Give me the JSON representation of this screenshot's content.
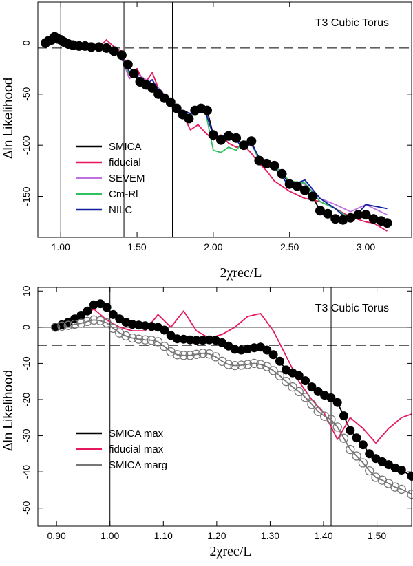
{
  "chart_data": [
    {
      "type": "line",
      "title": "T3 Cubic Torus",
      "xlabel": "2χrec/L",
      "ylabel": "Δln Likelihood",
      "xlim": [
        0.85,
        3.3
      ],
      "ylim": [
        -190,
        40
      ],
      "xticks": [
        "1.00",
        "1.50",
        "2.00",
        "2.50",
        "3.00"
      ],
      "yticks": [
        "0",
        "-50",
        "-100",
        "-150"
      ],
      "hlines": [
        0,
        -5
      ],
      "vlines": [
        1.0,
        1.4142,
        1.7321
      ],
      "legend_position": "left-middle",
      "series": [
        {
          "name": "SMICA",
          "color": "#000000",
          "markers": true,
          "x": [
            0.9,
            0.92,
            0.94,
            0.96,
            0.98,
            1.0,
            1.02,
            1.05,
            1.08,
            1.12,
            1.16,
            1.2,
            1.25,
            1.3,
            1.35,
            1.4,
            1.44,
            1.48,
            1.52,
            1.56,
            1.6,
            1.64,
            1.68,
            1.72,
            1.76,
            1.8,
            1.84,
            1.88,
            1.92,
            1.96,
            2.0,
            2.05,
            2.1,
            2.15,
            2.2,
            2.25,
            2.3,
            2.35,
            2.4,
            2.45,
            2.5,
            2.55,
            2.6,
            2.65,
            2.7,
            2.75,
            2.8,
            2.85,
            2.9,
            2.95,
            3.0,
            3.05,
            3.1,
            3.14
          ],
          "y": [
            0,
            2,
            3,
            6,
            4,
            3,
            1,
            -1,
            -2,
            -3,
            -3,
            -4,
            -4,
            -5,
            -8,
            -12,
            -21,
            -30,
            -38,
            -41,
            -44,
            -50,
            -54,
            -58,
            -64,
            -70,
            -74,
            -66,
            -64,
            -66,
            -90,
            -95,
            -91,
            -93,
            -100,
            -96,
            -115,
            -118,
            -120,
            -128,
            -138,
            -140,
            -144,
            -150,
            -164,
            -167,
            -172,
            -173,
            -171,
            -168,
            -168,
            -172,
            -174,
            -176
          ]
        },
        {
          "name": "fiducial",
          "color": "#e8185e",
          "markers": false,
          "x": [
            0.9,
            0.94,
            0.97,
            1.0,
            1.05,
            1.1,
            1.15,
            1.2,
            1.25,
            1.3,
            1.35,
            1.4,
            1.45,
            1.5,
            1.55,
            1.6,
            1.65,
            1.7,
            1.75,
            1.8,
            1.85,
            1.9,
            1.95,
            2.0,
            2.05,
            2.1,
            2.15,
            2.2,
            2.25,
            2.3,
            2.35,
            2.4,
            2.5,
            2.6,
            2.7,
            2.8,
            2.9,
            3.0,
            3.05,
            3.14
          ],
          "y": [
            0,
            3,
            5,
            2,
            -3,
            1,
            -1,
            -2,
            -4,
            3,
            -4,
            -8,
            -35,
            -25,
            -40,
            -29,
            -48,
            -55,
            -65,
            -70,
            -85,
            -80,
            -88,
            -95,
            -90,
            -98,
            -102,
            -100,
            -108,
            -118,
            -125,
            -135,
            -145,
            -152,
            -155,
            -162,
            -170,
            -175,
            -176,
            -184
          ]
        },
        {
          "name": "SEVEM",
          "color": "#c070e0",
          "markers": false,
          "x": [
            0.9,
            0.95,
            0.98,
            1.02,
            1.08,
            1.15,
            1.2,
            1.25,
            1.3,
            1.35,
            1.4,
            1.45,
            1.5,
            1.55,
            1.6,
            1.65,
            1.7,
            1.75,
            1.8,
            1.85,
            1.9,
            1.95,
            2.0,
            2.05,
            2.1,
            2.15,
            2.2,
            2.25,
            2.3,
            2.4,
            2.5,
            2.6,
            2.7,
            2.8,
            2.9,
            3.0,
            3.14
          ],
          "y": [
            0,
            4,
            5,
            1,
            -2,
            -3,
            -4,
            -5,
            -4,
            -7,
            -15,
            -35,
            -30,
            -35,
            -40,
            -45,
            -55,
            -62,
            -68,
            -72,
            -64,
            -66,
            -92,
            -96,
            -88,
            -96,
            -98,
            -100,
            -112,
            -118,
            -136,
            -138,
            -152,
            -158,
            -165,
            -158,
            -168
          ]
        },
        {
          "name": "Cm-Rl",
          "color": "#30c060",
          "markers": false,
          "x": [
            0.9,
            0.95,
            0.98,
            1.02,
            1.08,
            1.15,
            1.2,
            1.25,
            1.3,
            1.35,
            1.4,
            1.45,
            1.5,
            1.55,
            1.6,
            1.65,
            1.7,
            1.75,
            1.8,
            1.85,
            1.9,
            1.95,
            2.0,
            2.05,
            2.1,
            2.15,
            2.2,
            2.25,
            2.3,
            2.4,
            2.5,
            2.6,
            2.7,
            2.8,
            2.9,
            3.0
          ],
          "y": [
            0,
            4,
            5,
            -1,
            -3,
            -4,
            -5,
            -6,
            -6,
            -8,
            -15,
            -30,
            -35,
            -38,
            -42,
            -46,
            -55,
            -66,
            -68,
            -72,
            -64,
            -68,
            -105,
            -107,
            -102,
            -105,
            -96,
            -98,
            -115,
            -120,
            -135,
            -137,
            -155,
            -162,
            -172,
            -170
          ]
        },
        {
          "name": "NILC",
          "color": "#1020a0",
          "markers": false,
          "x": [
            0.9,
            0.95,
            0.98,
            1.02,
            1.08,
            1.15,
            1.2,
            1.25,
            1.3,
            1.35,
            1.4,
            1.45,
            1.5,
            1.55,
            1.6,
            1.65,
            1.7,
            1.75,
            1.8,
            1.85,
            1.9,
            1.95,
            2.0,
            2.05,
            2.1,
            2.15,
            2.2,
            2.25,
            2.3,
            2.4,
            2.5,
            2.6,
            2.7,
            2.8,
            2.9,
            3.0,
            3.14
          ],
          "y": [
            0,
            5,
            6,
            0,
            -2,
            -3,
            -3,
            -4,
            -5,
            -6,
            -14,
            -28,
            -32,
            -42,
            -36,
            -48,
            -52,
            -66,
            -66,
            -69,
            -62,
            -68,
            -90,
            -92,
            -88,
            -95,
            -104,
            -98,
            -112,
            -122,
            -140,
            -134,
            -152,
            -162,
            -175,
            -158,
            -162
          ]
        }
      ]
    },
    {
      "type": "line",
      "title": "T3 Cubic Torus",
      "xlabel": "2χrec/L",
      "ylabel": "Δln Likelihood",
      "xlim": [
        0.865,
        1.565
      ],
      "ylim": [
        -55,
        11
      ],
      "xticks": [
        "0.90",
        "1.00",
        "1.10",
        "1.20",
        "1.30",
        "1.40",
        "1.50"
      ],
      "yticks": [
        "10",
        "0",
        "-10",
        "-20",
        "-30",
        "-40",
        "-50"
      ],
      "hlines": [
        0,
        -5
      ],
      "vlines": [
        1.0,
        1.4142
      ],
      "legend_position": "left-lower",
      "series": [
        {
          "name": "SMICA max",
          "color": "#000000",
          "markers": "filled",
          "x": [
            0.898,
            0.91,
            0.922,
            0.934,
            0.946,
            0.958,
            0.97,
            0.982,
            0.994,
            1.006,
            1.018,
            1.03,
            1.042,
            1.054,
            1.066,
            1.078,
            1.09,
            1.102,
            1.114,
            1.126,
            1.138,
            1.15,
            1.162,
            1.174,
            1.186,
            1.198,
            1.21,
            1.222,
            1.234,
            1.246,
            1.258,
            1.27,
            1.282,
            1.294,
            1.306,
            1.318,
            1.33,
            1.342,
            1.354,
            1.366,
            1.378,
            1.39,
            1.402,
            1.414,
            1.426,
            1.438,
            1.45,
            1.462,
            1.474,
            1.486,
            1.498,
            1.51,
            1.522,
            1.534,
            1.546,
            1.565
          ],
          "y": [
            0,
            0.7,
            1.4,
            2.3,
            3.3,
            4.5,
            6.2,
            6.5,
            5.5,
            3.5,
            2.3,
            1.4,
            0.8,
            0.6,
            0.4,
            0.2,
            0,
            -0.8,
            -2.3,
            -3.2,
            -3.3,
            -3.5,
            -3.6,
            -3.6,
            -3.5,
            -3.6,
            -4.3,
            -5.2,
            -6.1,
            -6.3,
            -6.0,
            -5.7,
            -5.5,
            -6.3,
            -7.6,
            -9.4,
            -11.8,
            -12.6,
            -13.4,
            -14.8,
            -16.5,
            -17.8,
            -18.8,
            -19.5,
            -20.8,
            -24.5,
            -28.5,
            -30.6,
            -32.5,
            -35.0,
            -36.3,
            -37.2,
            -38.0,
            -38.9,
            -39.5,
            -41.2
          ]
        },
        {
          "name": "fiducial max",
          "color": "#e8185e",
          "markers": false,
          "x": [
            0.898,
            0.922,
            0.946,
            0.97,
            0.994,
            1.018,
            1.042,
            1.066,
            1.09,
            1.114,
            1.138,
            1.162,
            1.186,
            1.21,
            1.234,
            1.258,
            1.282,
            1.306,
            1.33,
            1.354,
            1.378,
            1.402,
            1.426,
            1.45,
            1.474,
            1.498,
            1.522,
            1.546,
            1.565
          ],
          "y": [
            0,
            1.5,
            3,
            5,
            2,
            0,
            -1,
            -1,
            3.5,
            0,
            4.5,
            -1,
            -3,
            -2,
            0,
            3,
            3.8,
            -1,
            -8,
            -15,
            -20,
            -24,
            -31,
            -25,
            -28,
            -32,
            -28,
            -25,
            -24
          ]
        },
        {
          "name": "SMICA marg",
          "color": "#777777",
          "markers": "open",
          "x": [
            0.898,
            0.91,
            0.922,
            0.934,
            0.946,
            0.958,
            0.97,
            0.982,
            0.994,
            1.006,
            1.018,
            1.03,
            1.042,
            1.054,
            1.066,
            1.078,
            1.09,
            1.102,
            1.114,
            1.126,
            1.138,
            1.15,
            1.162,
            1.174,
            1.186,
            1.198,
            1.21,
            1.222,
            1.234,
            1.246,
            1.258,
            1.27,
            1.282,
            1.294,
            1.306,
            1.318,
            1.33,
            1.342,
            1.354,
            1.366,
            1.378,
            1.39,
            1.402,
            1.414,
            1.426,
            1.438,
            1.45,
            1.462,
            1.474,
            1.486,
            1.498,
            1.51,
            1.522,
            1.534,
            1.546,
            1.565
          ],
          "y": [
            0,
            0.3,
            0.5,
            0.8,
            1.1,
            1.6,
            2.0,
            1.8,
            1.2,
            -0.3,
            -1.6,
            -2.4,
            -3.0,
            -3.3,
            -3.5,
            -3.6,
            -4.0,
            -5.3,
            -6.8,
            -7.6,
            -7.8,
            -7.8,
            -7.5,
            -7.2,
            -7.4,
            -8.2,
            -9.4,
            -10.3,
            -10.6,
            -10.5,
            -10.3,
            -10.0,
            -10.3,
            -10.9,
            -12.0,
            -13.4,
            -15.0,
            -16.5,
            -17.8,
            -19.4,
            -21.3,
            -23.3,
            -24.6,
            -25.5,
            -27.6,
            -30.7,
            -33.8,
            -35.6,
            -37.5,
            -39.7,
            -41.5,
            -42.3,
            -43.2,
            -44.2,
            -44.8,
            -46.2
          ]
        }
      ]
    }
  ]
}
